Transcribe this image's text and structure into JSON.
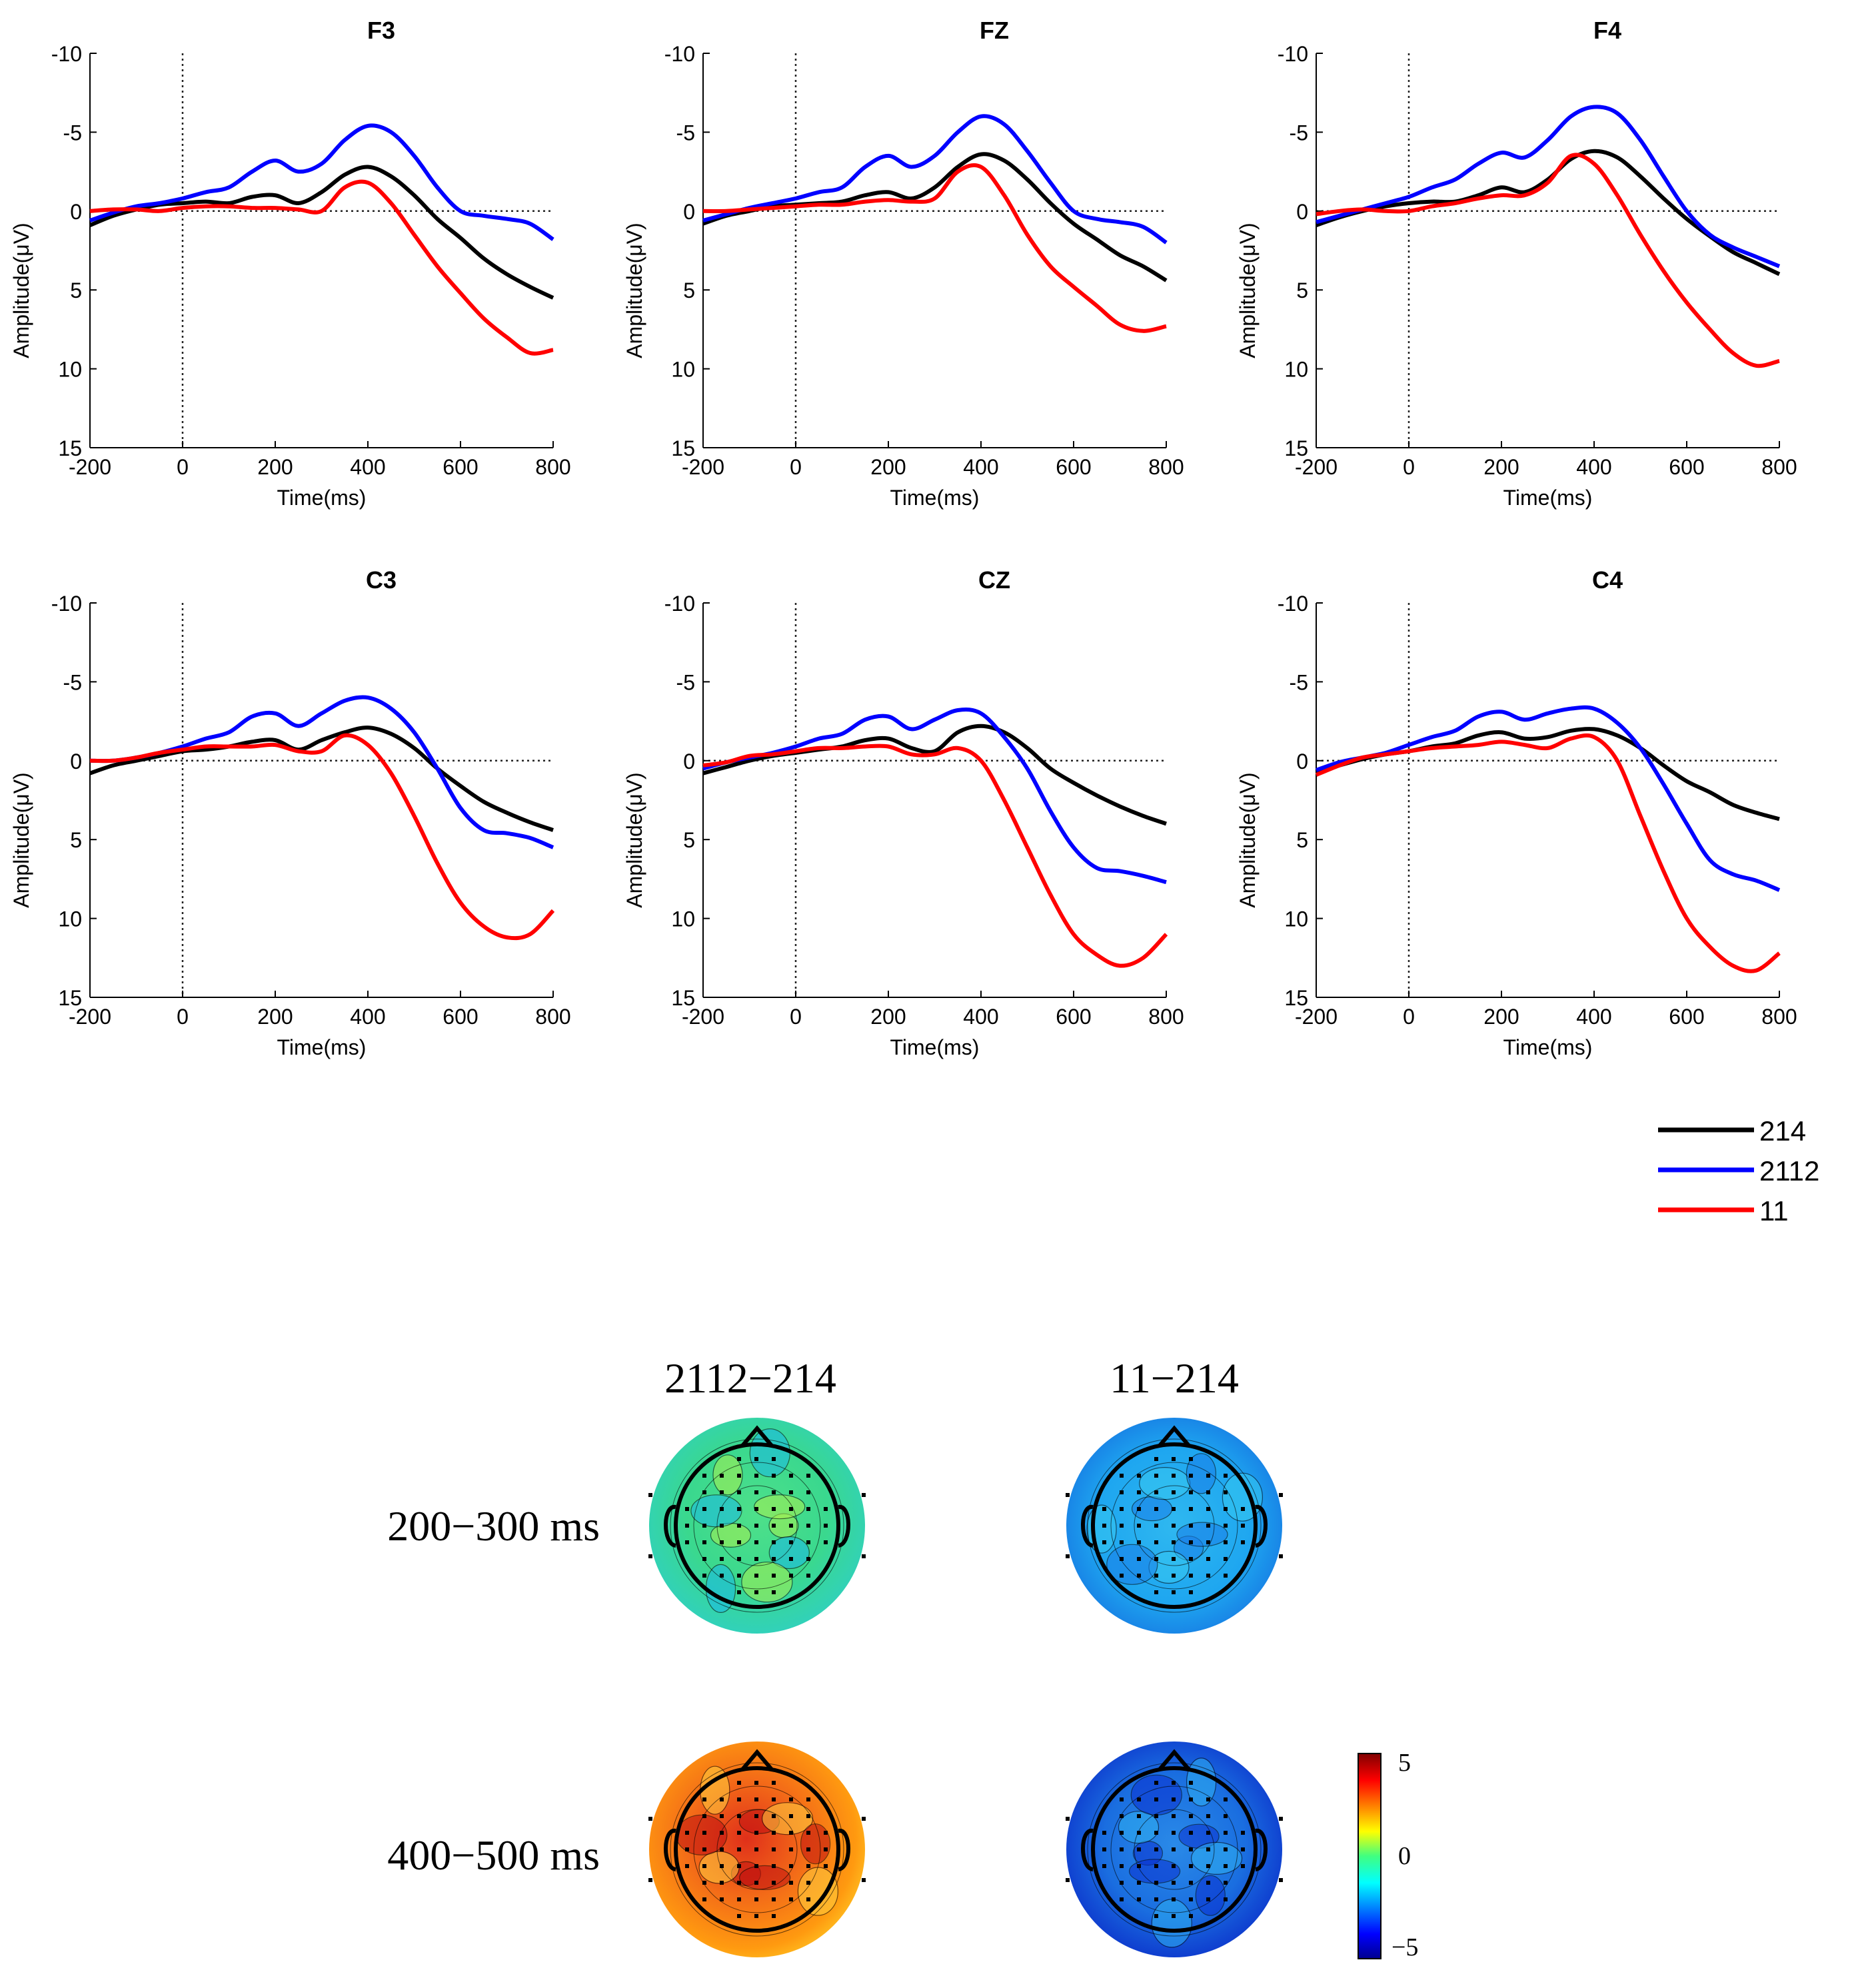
{
  "colors": {
    "c214": "#000000",
    "c2112": "#0000ff",
    "c11": "#ff0000"
  },
  "shared_axes": {
    "xlabel": "Time(ms)",
    "ylabel": "Amplitude(μV)",
    "xlim": [
      -200,
      800
    ],
    "ylim": [
      -10,
      15
    ],
    "y_inverted": true,
    "xticks": [
      -200,
      0,
      200,
      400,
      600,
      800
    ],
    "yticks": [
      -10,
      -5,
      0,
      5,
      10,
      15
    ],
    "xtick_labels": [
      "-200",
      "0",
      "200",
      "400",
      "600",
      "800"
    ],
    "ytick_labels": [
      "-10",
      "-5",
      "0",
      "5",
      "10",
      "15"
    ]
  },
  "legend": {
    "placement": "right, below plots",
    "entries": [
      {
        "label": "214",
        "color": "#000000"
      },
      {
        "label": "2112",
        "color": "#0000ff"
      },
      {
        "label": "11",
        "color": "#ff0000"
      }
    ]
  },
  "chart_data": [
    {
      "type": "line",
      "title": "F3",
      "x": [
        -200,
        -150,
        -100,
        -50,
        0,
        50,
        100,
        150,
        200,
        250,
        300,
        350,
        400,
        450,
        500,
        550,
        600,
        650,
        700,
        750,
        800
      ],
      "series": [
        {
          "name": "214",
          "values": [
            0.9,
            0.3,
            -0.1,
            -0.4,
            -0.5,
            -0.6,
            -0.5,
            -0.9,
            -1.0,
            -0.5,
            -1.2,
            -2.3,
            -2.8,
            -2.2,
            -1.0,
            0.5,
            1.7,
            3.0,
            4.0,
            4.8,
            5.5
          ]
        },
        {
          "name": "2112",
          "values": [
            0.6,
            0.1,
            -0.3,
            -0.5,
            -0.8,
            -1.2,
            -1.5,
            -2.5,
            -3.2,
            -2.5,
            -3.0,
            -4.5,
            -5.4,
            -5.0,
            -3.5,
            -1.5,
            0.0,
            0.3,
            0.5,
            0.8,
            1.8
          ]
        },
        {
          "name": "11",
          "values": [
            0.0,
            -0.1,
            -0.1,
            0.0,
            -0.2,
            -0.3,
            -0.3,
            -0.2,
            -0.2,
            -0.1,
            0.0,
            -1.5,
            -1.8,
            -0.5,
            1.5,
            3.5,
            5.2,
            6.8,
            8.0,
            9.0,
            8.8
          ]
        }
      ]
    },
    {
      "type": "line",
      "title": "FZ",
      "x": [
        -200,
        -150,
        -100,
        -50,
        0,
        50,
        100,
        150,
        200,
        250,
        300,
        350,
        400,
        450,
        500,
        550,
        600,
        650,
        700,
        750,
        800
      ],
      "series": [
        {
          "name": "214",
          "values": [
            0.8,
            0.3,
            0.0,
            -0.3,
            -0.4,
            -0.5,
            -0.6,
            -1.0,
            -1.2,
            -0.8,
            -1.5,
            -2.8,
            -3.6,
            -3.2,
            -2.0,
            -0.5,
            0.8,
            1.8,
            2.8,
            3.5,
            4.4
          ]
        },
        {
          "name": "2112",
          "values": [
            0.6,
            0.2,
            -0.2,
            -0.5,
            -0.8,
            -1.2,
            -1.5,
            -2.8,
            -3.5,
            -2.8,
            -3.5,
            -5.0,
            -6.0,
            -5.5,
            -3.8,
            -1.8,
            0.0,
            0.5,
            0.7,
            1.0,
            2.0
          ]
        },
        {
          "name": "11",
          "values": [
            0.0,
            0.0,
            -0.1,
            -0.2,
            -0.3,
            -0.4,
            -0.4,
            -0.6,
            -0.7,
            -0.6,
            -0.8,
            -2.5,
            -2.8,
            -1.0,
            1.5,
            3.5,
            4.8,
            6.0,
            7.2,
            7.6,
            7.3
          ]
        }
      ]
    },
    {
      "type": "line",
      "title": "F4",
      "x": [
        -200,
        -150,
        -100,
        -50,
        0,
        50,
        100,
        150,
        200,
        250,
        300,
        350,
        400,
        450,
        500,
        550,
        600,
        650,
        700,
        750,
        800
      ],
      "series": [
        {
          "name": "214",
          "values": [
            0.9,
            0.4,
            0.0,
            -0.3,
            -0.5,
            -0.6,
            -0.6,
            -1.0,
            -1.5,
            -1.2,
            -2.0,
            -3.3,
            -3.8,
            -3.4,
            -2.2,
            -0.8,
            0.5,
            1.6,
            2.6,
            3.3,
            4.0
          ]
        },
        {
          "name": "2112",
          "values": [
            0.7,
            0.3,
            -0.1,
            -0.5,
            -0.9,
            -1.5,
            -2.0,
            -3.0,
            -3.7,
            -3.4,
            -4.5,
            -6.0,
            -6.6,
            -6.2,
            -4.5,
            -2.2,
            0.0,
            1.5,
            2.3,
            2.9,
            3.5
          ]
        },
        {
          "name": "11",
          "values": [
            0.2,
            0.0,
            -0.1,
            0.0,
            0.0,
            -0.3,
            -0.5,
            -0.8,
            -1.0,
            -1.0,
            -1.8,
            -3.5,
            -3.0,
            -1.0,
            1.5,
            3.8,
            5.8,
            7.5,
            9.0,
            9.8,
            9.5
          ]
        }
      ]
    },
    {
      "type": "line",
      "title": "C3",
      "x": [
        -200,
        -150,
        -100,
        -50,
        0,
        50,
        100,
        150,
        200,
        250,
        300,
        350,
        400,
        450,
        500,
        550,
        600,
        650,
        700,
        750,
        800
      ],
      "series": [
        {
          "name": "214",
          "values": [
            0.8,
            0.3,
            0.0,
            -0.3,
            -0.6,
            -0.7,
            -0.9,
            -1.2,
            -1.3,
            -0.7,
            -1.3,
            -1.8,
            -2.1,
            -1.7,
            -0.8,
            0.5,
            1.6,
            2.6,
            3.3,
            3.9,
            4.4
          ]
        },
        {
          "name": "2112",
          "values": [
            0.0,
            0.0,
            -0.2,
            -0.5,
            -0.9,
            -1.4,
            -1.8,
            -2.8,
            -3.0,
            -2.2,
            -3.0,
            -3.8,
            -4.0,
            -3.3,
            -1.8,
            0.5,
            3.0,
            4.4,
            4.6,
            4.9,
            5.5
          ]
        },
        {
          "name": "11",
          "values": [
            0.0,
            0.0,
            -0.2,
            -0.5,
            -0.7,
            -0.9,
            -0.9,
            -0.9,
            -1.0,
            -0.6,
            -0.6,
            -1.6,
            -1.0,
            0.8,
            3.5,
            6.5,
            9.0,
            10.5,
            11.2,
            11.0,
            9.5
          ]
        }
      ]
    },
    {
      "type": "line",
      "title": "CZ",
      "x": [
        -200,
        -150,
        -100,
        -50,
        0,
        50,
        100,
        150,
        200,
        250,
        300,
        350,
        400,
        450,
        500,
        550,
        600,
        650,
        700,
        750,
        800
      ],
      "series": [
        {
          "name": "214",
          "values": [
            0.8,
            0.4,
            0.0,
            -0.3,
            -0.5,
            -0.7,
            -0.9,
            -1.3,
            -1.4,
            -0.8,
            -0.6,
            -1.8,
            -2.2,
            -1.8,
            -0.8,
            0.5,
            1.4,
            2.2,
            2.9,
            3.5,
            4.0
          ]
        },
        {
          "name": "2112",
          "values": [
            0.5,
            0.1,
            -0.2,
            -0.5,
            -0.9,
            -1.4,
            -1.7,
            -2.6,
            -2.8,
            -2.0,
            -2.6,
            -3.2,
            -3.0,
            -1.5,
            0.5,
            3.2,
            5.5,
            6.8,
            7.0,
            7.3,
            7.7
          ]
        },
        {
          "name": "11",
          "values": [
            0.3,
            0.1,
            -0.3,
            -0.4,
            -0.6,
            -0.8,
            -0.8,
            -0.9,
            -0.9,
            -0.4,
            -0.4,
            -0.8,
            0.0,
            2.5,
            5.5,
            8.5,
            11.0,
            12.3,
            13.0,
            12.5,
            11.0
          ]
        }
      ]
    },
    {
      "type": "line",
      "title": "C4",
      "x": [
        -200,
        -150,
        -100,
        -50,
        0,
        50,
        100,
        150,
        200,
        250,
        300,
        350,
        400,
        450,
        500,
        550,
        600,
        650,
        700,
        750,
        800
      ],
      "series": [
        {
          "name": "214",
          "values": [
            0.7,
            0.3,
            -0.1,
            -0.4,
            -0.6,
            -0.9,
            -1.1,
            -1.6,
            -1.8,
            -1.4,
            -1.5,
            -1.9,
            -2.0,
            -1.6,
            -0.8,
            0.3,
            1.3,
            2.0,
            2.8,
            3.3,
            3.7
          ]
        },
        {
          "name": "2112",
          "values": [
            0.6,
            0.1,
            -0.2,
            -0.5,
            -1.0,
            -1.5,
            -1.9,
            -2.8,
            -3.1,
            -2.6,
            -3.0,
            -3.3,
            -3.3,
            -2.4,
            -0.8,
            1.5,
            4.0,
            6.3,
            7.2,
            7.6,
            8.2
          ]
        },
        {
          "name": "11",
          "values": [
            0.9,
            0.3,
            -0.2,
            -0.4,
            -0.6,
            -0.8,
            -0.9,
            -1.0,
            -1.2,
            -1.0,
            -0.8,
            -1.4,
            -1.5,
            0.0,
            3.5,
            7.0,
            10.0,
            11.8,
            13.0,
            13.3,
            12.2
          ]
        }
      ]
    }
  ],
  "topography": {
    "col_labels": [
      "2112−214",
      "11−214"
    ],
    "row_labels": [
      "200−300 ms",
      "400−500 ms"
    ],
    "colorbar": {
      "min": -5,
      "max": 5,
      "tick_labels": [
        "5",
        "0",
        "−5"
      ]
    },
    "maps": [
      {
        "row": 0,
        "col": 0,
        "mean_level": 0.2
      },
      {
        "row": 0,
        "col": 1,
        "mean_level": -3.0
      },
      {
        "row": 1,
        "col": 0,
        "mean_level": 3.8
      },
      {
        "row": 1,
        "col": 1,
        "mean_level": -3.8
      }
    ]
  }
}
